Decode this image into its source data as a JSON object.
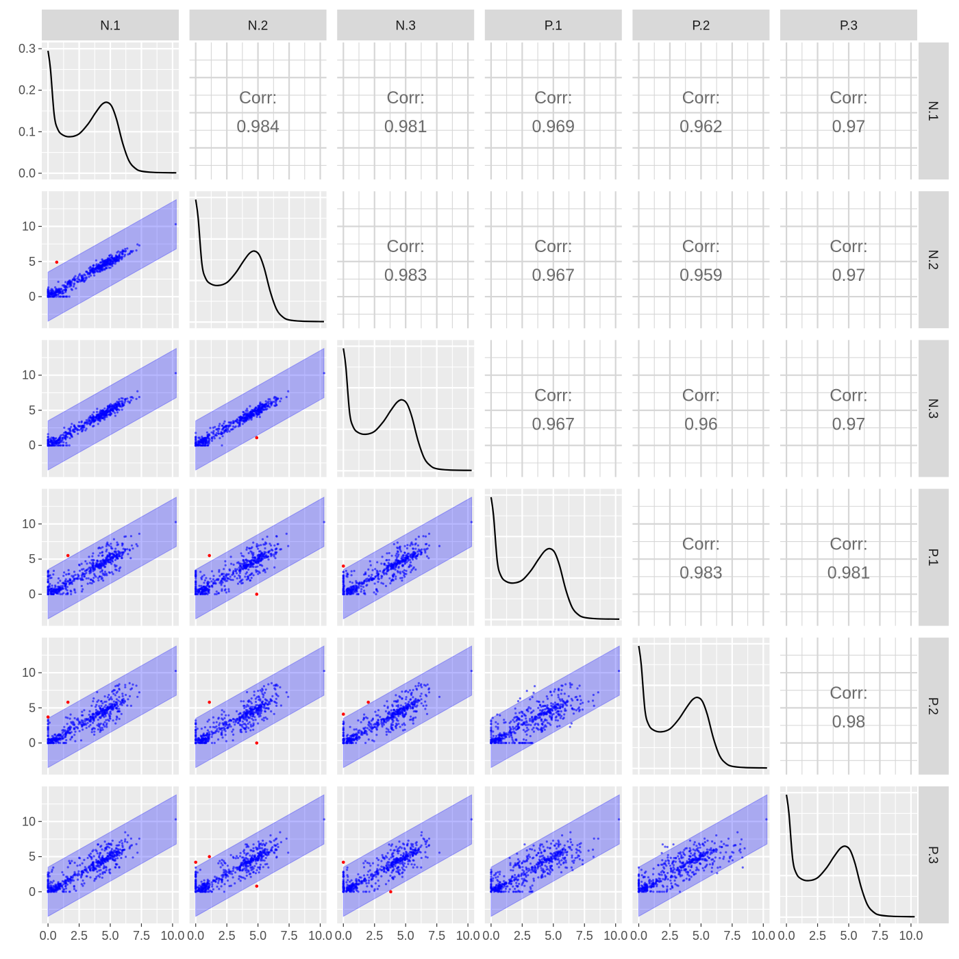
{
  "chart_data": {
    "type": "scatter",
    "title": "",
    "variables": [
      "N.1",
      "N.2",
      "N.3",
      "P.1",
      "P.2",
      "P.3"
    ],
    "axis_range": [
      -0.5,
      10.5
    ],
    "x_ticks": [
      0.0,
      2.5,
      5.0,
      7.5,
      10.0
    ],
    "x_tick_labels": [
      "0.0",
      "2.5",
      "5.0",
      "7.5",
      "10.0"
    ],
    "y_ticks": [
      0,
      5,
      10
    ],
    "y_tick_labels": [
      "0",
      "5",
      "10"
    ],
    "scatter_y_range": [
      -4.5,
      15
    ],
    "density_axis": {
      "ticks": [
        0.0,
        0.1,
        0.2,
        0.3
      ],
      "tick_labels": [
        "0.0",
        "0.1",
        "0.2",
        "0.3"
      ],
      "range": [
        -0.015,
        0.315
      ]
    },
    "density_curve": [
      [
        0.0,
        0.295
      ],
      [
        0.2,
        0.25
      ],
      [
        0.5,
        0.14
      ],
      [
        0.8,
        0.105
      ],
      [
        1.2,
        0.092
      ],
      [
        1.8,
        0.088
      ],
      [
        2.5,
        0.095
      ],
      [
        3.2,
        0.118
      ],
      [
        3.8,
        0.145
      ],
      [
        4.3,
        0.165
      ],
      [
        4.7,
        0.171
      ],
      [
        5.1,
        0.162
      ],
      [
        5.5,
        0.13
      ],
      [
        6.0,
        0.072
      ],
      [
        6.5,
        0.03
      ],
      [
        7.0,
        0.012
      ],
      [
        7.5,
        0.005
      ],
      [
        8.5,
        0.002
      ],
      [
        10.3,
        0.001
      ]
    ],
    "prediction_band_halfwidth": 3.5,
    "corr_label": "Corr:",
    "correlations": [
      {
        "row": "N.1",
        "col": "N.2",
        "value": "0.984"
      },
      {
        "row": "N.1",
        "col": "N.3",
        "value": "0.981"
      },
      {
        "row": "N.1",
        "col": "P.1",
        "value": "0.969"
      },
      {
        "row": "N.1",
        "col": "P.2",
        "value": "0.962"
      },
      {
        "row": "N.1",
        "col": "P.3",
        "value": "0.97"
      },
      {
        "row": "N.2",
        "col": "N.3",
        "value": "0.983"
      },
      {
        "row": "N.2",
        "col": "P.1",
        "value": "0.967"
      },
      {
        "row": "N.2",
        "col": "P.2",
        "value": "0.959"
      },
      {
        "row": "N.2",
        "col": "P.3",
        "value": "0.97"
      },
      {
        "row": "N.3",
        "col": "P.1",
        "value": "0.967"
      },
      {
        "row": "N.3",
        "col": "P.2",
        "value": "0.96"
      },
      {
        "row": "N.3",
        "col": "P.3",
        "value": "0.97"
      },
      {
        "row": "P.1",
        "col": "P.2",
        "value": "0.983"
      },
      {
        "row": "P.1",
        "col": "P.3",
        "value": "0.981"
      },
      {
        "row": "P.2",
        "col": "P.3",
        "value": "0.98"
      }
    ],
    "outliers": [
      {
        "row": "N.2",
        "col": "N.1",
        "x": 0.7,
        "y": 4.9
      },
      {
        "row": "N.3",
        "col": "N.2",
        "x": 4.9,
        "y": 1.1
      },
      {
        "row": "P.1",
        "col": "N.1",
        "x": 1.6,
        "y": 5.5
      },
      {
        "row": "P.1",
        "col": "N.2",
        "x": 1.1,
        "y": 5.5
      },
      {
        "row": "P.1",
        "col": "N.2",
        "x": 4.9,
        "y": 0.0
      },
      {
        "row": "P.1",
        "col": "N.3",
        "x": 0.0,
        "y": 4.0
      },
      {
        "row": "P.2",
        "col": "N.1",
        "x": 0.0,
        "y": 3.7
      },
      {
        "row": "P.2",
        "col": "N.1",
        "x": 1.6,
        "y": 5.8
      },
      {
        "row": "P.2",
        "col": "N.2",
        "x": 1.1,
        "y": 5.8
      },
      {
        "row": "P.2",
        "col": "N.2",
        "x": 4.9,
        "y": 0.0
      },
      {
        "row": "P.2",
        "col": "N.3",
        "x": 0.0,
        "y": 4.1
      },
      {
        "row": "P.2",
        "col": "N.3",
        "x": 2.0,
        "y": 5.8
      },
      {
        "row": "P.3",
        "col": "N.2",
        "x": 0.0,
        "y": 4.2
      },
      {
        "row": "P.3",
        "col": "N.2",
        "x": 1.1,
        "y": 5.0
      },
      {
        "row": "P.3",
        "col": "N.2",
        "x": 4.9,
        "y": 0.8
      },
      {
        "row": "P.3",
        "col": "N.3",
        "x": 0.0,
        "y": 4.2
      },
      {
        "row": "P.3",
        "col": "N.3",
        "x": 3.8,
        "y": 0.0
      }
    ],
    "colors": {
      "points": "#0000ff",
      "band": "#0000ff",
      "outliers": "#ff0000",
      "panel_bg": "#ebebeb",
      "strip_bg": "#d9d9d9",
      "grid": "#ffffff"
    }
  }
}
